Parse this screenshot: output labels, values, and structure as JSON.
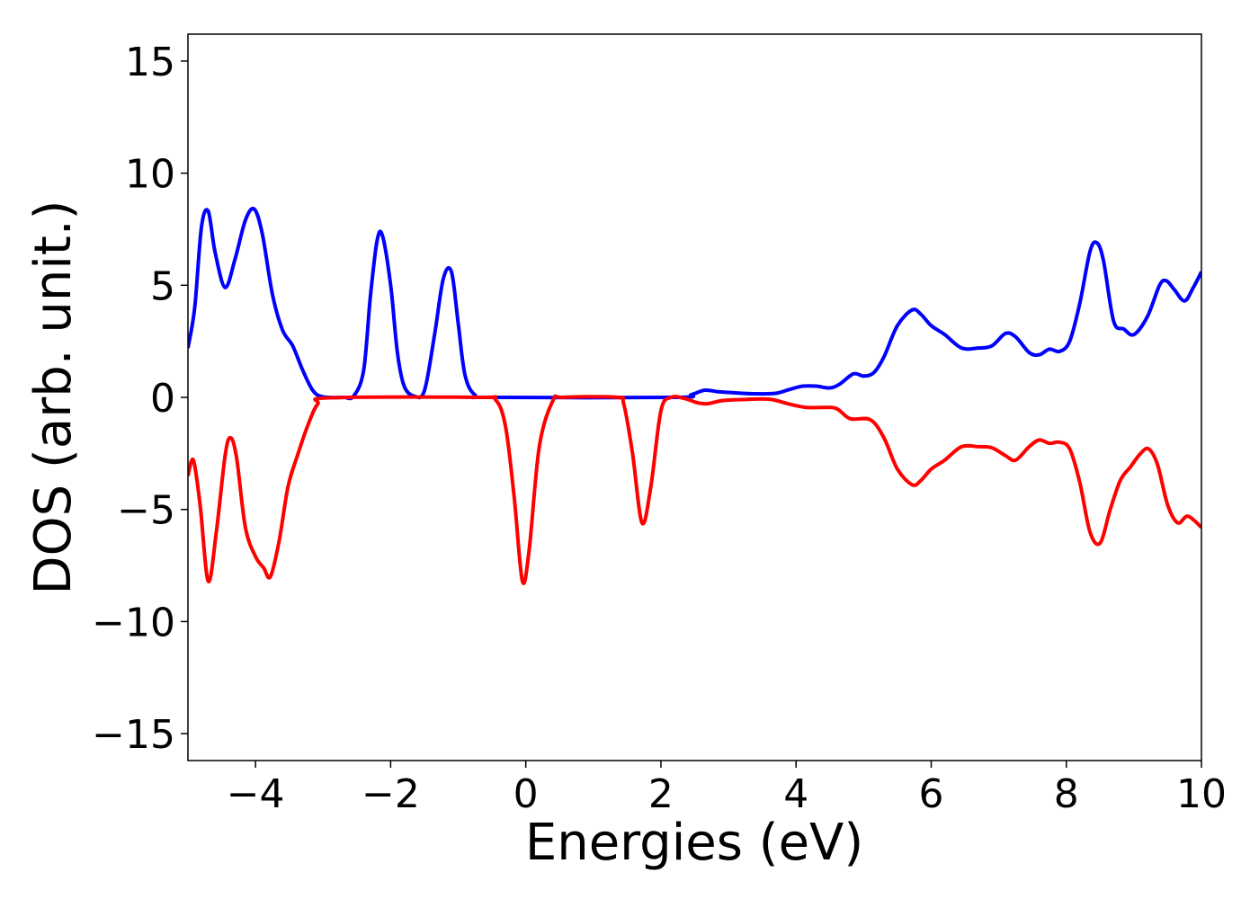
{
  "chart_data": {
    "type": "line",
    "title": "",
    "xlabel": "Energies (eV)",
    "ylabel": "DOS (arb. unit.)",
    "xlim": [
      -5,
      10
    ],
    "ylim": [
      -16.2,
      16.2
    ],
    "grid": false,
    "legend": "none",
    "xticks": [
      {
        "value": -4,
        "label": "−4"
      },
      {
        "value": -2,
        "label": "−2"
      },
      {
        "value": 0,
        "label": "0"
      },
      {
        "value": 2,
        "label": "2"
      },
      {
        "value": 4,
        "label": "4"
      },
      {
        "value": 6,
        "label": "6"
      },
      {
        "value": 8,
        "label": "8"
      },
      {
        "value": 10,
        "label": "10"
      }
    ],
    "yticks": [
      {
        "value": 15,
        "label": "15"
      },
      {
        "value": 10,
        "label": "10"
      },
      {
        "value": 5,
        "label": "5"
      },
      {
        "value": 0,
        "label": "0"
      },
      {
        "value": -5,
        "label": "−5"
      },
      {
        "value": -10,
        "label": "−10"
      },
      {
        "value": -15,
        "label": "−15"
      }
    ],
    "series": [
      {
        "color": "#0000ff",
        "points": [
          [
            -5.0,
            2.2
          ],
          [
            -4.9,
            4.0
          ],
          [
            -4.8,
            7.6
          ],
          [
            -4.7,
            8.3
          ],
          [
            -4.6,
            6.5
          ],
          [
            -4.45,
            4.9
          ],
          [
            -4.3,
            6.2
          ],
          [
            -4.15,
            7.9
          ],
          [
            -4.02,
            8.4
          ],
          [
            -3.9,
            7.3
          ],
          [
            -3.75,
            4.6
          ],
          [
            -3.6,
            3.0
          ],
          [
            -3.45,
            2.3
          ],
          [
            -3.3,
            1.2
          ],
          [
            -3.15,
            0.3
          ],
          [
            -3.0,
            0.02
          ],
          [
            -2.7,
            0.0
          ],
          [
            -2.55,
            0.05
          ],
          [
            -2.4,
            1.2
          ],
          [
            -2.3,
            4.5
          ],
          [
            -2.2,
            7.0
          ],
          [
            -2.12,
            7.2
          ],
          [
            -2.0,
            5.0
          ],
          [
            -1.9,
            2.0
          ],
          [
            -1.8,
            0.5
          ],
          [
            -1.65,
            0.05
          ],
          [
            -1.5,
            0.3
          ],
          [
            -1.35,
            2.8
          ],
          [
            -1.22,
            5.3
          ],
          [
            -1.1,
            5.6
          ],
          [
            -1.0,
            3.3
          ],
          [
            -0.9,
            1.0
          ],
          [
            -0.75,
            0.1
          ],
          [
            -0.5,
            0.0
          ],
          [
            2.2,
            0.0
          ],
          [
            2.45,
            0.12
          ],
          [
            2.65,
            0.32
          ],
          [
            2.85,
            0.25
          ],
          [
            3.1,
            0.2
          ],
          [
            3.4,
            0.16
          ],
          [
            3.7,
            0.18
          ],
          [
            3.9,
            0.35
          ],
          [
            4.1,
            0.5
          ],
          [
            4.3,
            0.5
          ],
          [
            4.5,
            0.42
          ],
          [
            4.65,
            0.6
          ],
          [
            4.85,
            1.05
          ],
          [
            5.0,
            0.95
          ],
          [
            5.15,
            1.1
          ],
          [
            5.3,
            1.8
          ],
          [
            5.5,
            3.2
          ],
          [
            5.72,
            3.9
          ],
          [
            5.85,
            3.7
          ],
          [
            6.0,
            3.2
          ],
          [
            6.2,
            2.8
          ],
          [
            6.45,
            2.2
          ],
          [
            6.7,
            2.2
          ],
          [
            6.9,
            2.3
          ],
          [
            7.1,
            2.85
          ],
          [
            7.25,
            2.7
          ],
          [
            7.45,
            2.0
          ],
          [
            7.6,
            1.9
          ],
          [
            7.75,
            2.15
          ],
          [
            7.9,
            2.05
          ],
          [
            8.05,
            2.5
          ],
          [
            8.2,
            4.2
          ],
          [
            8.35,
            6.5
          ],
          [
            8.45,
            6.9
          ],
          [
            8.55,
            6.1
          ],
          [
            8.7,
            3.4
          ],
          [
            8.85,
            3.05
          ],
          [
            9.0,
            2.8
          ],
          [
            9.2,
            3.6
          ],
          [
            9.38,
            5.0
          ],
          [
            9.48,
            5.2
          ],
          [
            9.6,
            4.8
          ],
          [
            9.75,
            4.3
          ],
          [
            9.88,
            4.9
          ],
          [
            10.0,
            5.6
          ]
        ]
      },
      {
        "color": "#ff0000",
        "points": [
          [
            -5.0,
            -3.5
          ],
          [
            -4.92,
            -2.8
          ],
          [
            -4.82,
            -4.8
          ],
          [
            -4.7,
            -8.2
          ],
          [
            -4.58,
            -6.0
          ],
          [
            -4.45,
            -2.6
          ],
          [
            -4.37,
            -1.8
          ],
          [
            -4.28,
            -2.7
          ],
          [
            -4.15,
            -5.8
          ],
          [
            -4.0,
            -7.1
          ],
          [
            -3.88,
            -7.6
          ],
          [
            -3.78,
            -8.0
          ],
          [
            -3.65,
            -6.4
          ],
          [
            -3.52,
            -4.0
          ],
          [
            -3.38,
            -2.6
          ],
          [
            -3.22,
            -1.2
          ],
          [
            -3.08,
            -0.3
          ],
          [
            -2.9,
            -0.02
          ],
          [
            -0.7,
            0.0
          ],
          [
            -0.45,
            -0.1
          ],
          [
            -0.3,
            -1.3
          ],
          [
            -0.17,
            -4.5
          ],
          [
            -0.05,
            -8.2
          ],
          [
            0.05,
            -6.8
          ],
          [
            0.2,
            -2.2
          ],
          [
            0.4,
            -0.15
          ],
          [
            0.55,
            0.0
          ],
          [
            1.35,
            0.0
          ],
          [
            1.45,
            -0.3
          ],
          [
            1.58,
            -2.5
          ],
          [
            1.72,
            -5.6
          ],
          [
            1.85,
            -4.0
          ],
          [
            2.0,
            -0.6
          ],
          [
            2.15,
            0.0
          ],
          [
            2.35,
            -0.05
          ],
          [
            2.55,
            -0.25
          ],
          [
            2.7,
            -0.28
          ],
          [
            2.9,
            -0.15
          ],
          [
            3.2,
            -0.1
          ],
          [
            3.6,
            -0.08
          ],
          [
            3.9,
            -0.3
          ],
          [
            4.15,
            -0.45
          ],
          [
            4.4,
            -0.45
          ],
          [
            4.6,
            -0.5
          ],
          [
            4.8,
            -0.95
          ],
          [
            5.1,
            -1.0
          ],
          [
            5.3,
            -1.8
          ],
          [
            5.5,
            -3.2
          ],
          [
            5.72,
            -3.9
          ],
          [
            5.85,
            -3.7
          ],
          [
            6.0,
            -3.2
          ],
          [
            6.2,
            -2.8
          ],
          [
            6.45,
            -2.2
          ],
          [
            6.7,
            -2.2
          ],
          [
            6.9,
            -2.25
          ],
          [
            7.1,
            -2.6
          ],
          [
            7.25,
            -2.8
          ],
          [
            7.45,
            -2.2
          ],
          [
            7.6,
            -1.9
          ],
          [
            7.75,
            -2.05
          ],
          [
            7.9,
            -2.0
          ],
          [
            8.05,
            -2.3
          ],
          [
            8.2,
            -3.8
          ],
          [
            8.35,
            -6.0
          ],
          [
            8.5,
            -6.5
          ],
          [
            8.65,
            -5.0
          ],
          [
            8.8,
            -3.7
          ],
          [
            8.95,
            -3.1
          ],
          [
            9.1,
            -2.5
          ],
          [
            9.22,
            -2.3
          ],
          [
            9.35,
            -3.0
          ],
          [
            9.5,
            -4.8
          ],
          [
            9.65,
            -5.6
          ],
          [
            9.8,
            -5.3
          ],
          [
            10.0,
            -5.8
          ]
        ]
      }
    ]
  }
}
